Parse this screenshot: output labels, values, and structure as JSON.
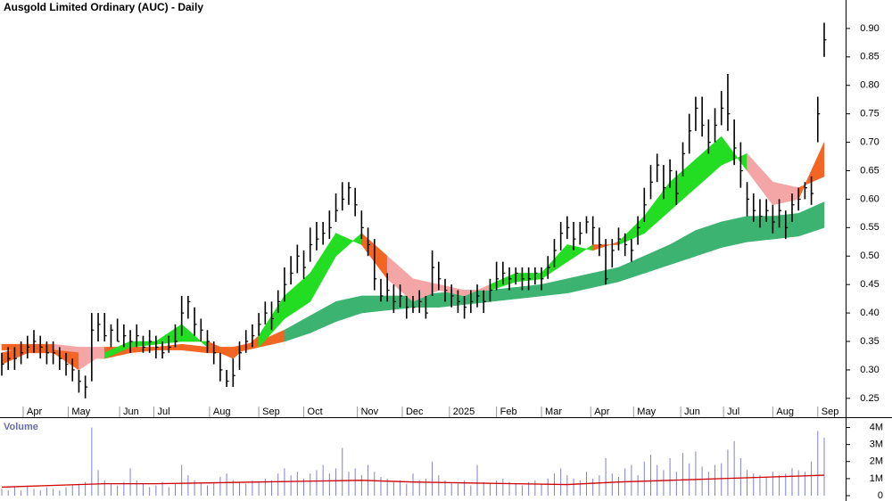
{
  "chart_data": [
    {
      "type": "ohlc",
      "title": "Ausgold Limited Ordinary (AUC) - Daily",
      "color": "#000000",
      "x": [
        0,
        3,
        6,
        9,
        12,
        15,
        18,
        21,
        24,
        27,
        30,
        33,
        36,
        39,
        42,
        45,
        48,
        51,
        54,
        57,
        60,
        63,
        66,
        69,
        72,
        75,
        78,
        81,
        84,
        87,
        90,
        93,
        96,
        99,
        102,
        105,
        108,
        111,
        114,
        117,
        120,
        123,
        126,
        129,
        132,
        135,
        138,
        141,
        144,
        147,
        150,
        153,
        156,
        159,
        162,
        165,
        168,
        171,
        174,
        177,
        180,
        183,
        186,
        189,
        192,
        195,
        198,
        201,
        204,
        207,
        210,
        213,
        216,
        219,
        222,
        225,
        228,
        231,
        234,
        237,
        240,
        243,
        246,
        249,
        252,
        255,
        258,
        261,
        264,
        267,
        270,
        273,
        276,
        279,
        282,
        285,
        288,
        291,
        294,
        297,
        300,
        303,
        306,
        309,
        312,
        315,
        318,
        321,
        324,
        327,
        330,
        333,
        336,
        339,
        342,
        345,
        348,
        351,
        354,
        357,
        360,
        363,
        366,
        369,
        372,
        375,
        378,
        381,
        384
      ],
      "high": [
        0.33,
        0.34,
        0.34,
        0.35,
        0.36,
        0.37,
        0.36,
        0.35,
        0.35,
        0.34,
        0.33,
        0.32,
        0.3,
        0.29,
        0.4,
        0.4,
        0.4,
        0.38,
        0.39,
        0.38,
        0.37,
        0.38,
        0.36,
        0.37,
        0.36,
        0.35,
        0.36,
        0.38,
        0.43,
        0.43,
        0.41,
        0.39,
        0.37,
        0.35,
        0.33,
        0.3,
        0.32,
        0.35,
        0.37,
        0.38,
        0.4,
        0.42,
        0.42,
        0.44,
        0.48,
        0.5,
        0.52,
        0.51,
        0.55,
        0.56,
        0.56,
        0.58,
        0.61,
        0.63,
        0.63,
        0.62,
        0.58,
        0.55,
        0.53,
        0.46,
        0.47,
        0.45,
        0.45,
        0.43,
        0.43,
        0.44,
        0.43,
        0.51,
        0.49,
        0.46,
        0.45,
        0.44,
        0.43,
        0.44,
        0.45,
        0.44,
        0.46,
        0.49,
        0.49,
        0.48,
        0.48,
        0.48,
        0.48,
        0.48,
        0.48,
        0.5,
        0.53,
        0.56,
        0.57,
        0.56,
        0.56,
        0.57,
        0.57,
        0.55,
        0.53,
        0.53,
        0.55,
        0.54,
        0.53,
        0.57,
        0.62,
        0.66,
        0.68,
        0.66,
        0.67,
        0.65,
        0.7,
        0.75,
        0.78,
        0.78,
        0.74,
        0.76,
        0.79,
        0.82,
        0.74,
        0.7,
        0.63,
        0.61,
        0.6,
        0.6,
        0.59,
        0.6,
        0.58,
        0.61,
        0.62,
        0.63,
        0.64,
        0.78,
        0.91
      ],
      "low": [
        0.29,
        0.3,
        0.3,
        0.31,
        0.32,
        0.33,
        0.32,
        0.31,
        0.31,
        0.3,
        0.29,
        0.28,
        0.26,
        0.25,
        0.28,
        0.35,
        0.35,
        0.34,
        0.35,
        0.34,
        0.33,
        0.34,
        0.33,
        0.33,
        0.32,
        0.32,
        0.33,
        0.34,
        0.36,
        0.39,
        0.36,
        0.35,
        0.33,
        0.31,
        0.28,
        0.27,
        0.27,
        0.3,
        0.33,
        0.34,
        0.36,
        0.38,
        0.37,
        0.4,
        0.42,
        0.45,
        0.47,
        0.46,
        0.49,
        0.51,
        0.52,
        0.53,
        0.56,
        0.58,
        0.59,
        0.57,
        0.53,
        0.5,
        0.44,
        0.42,
        0.42,
        0.4,
        0.41,
        0.39,
        0.4,
        0.4,
        0.39,
        0.43,
        0.44,
        0.42,
        0.41,
        0.4,
        0.39,
        0.4,
        0.41,
        0.4,
        0.42,
        0.44,
        0.45,
        0.44,
        0.45,
        0.44,
        0.44,
        0.45,
        0.44,
        0.46,
        0.48,
        0.51,
        0.53,
        0.51,
        0.52,
        0.54,
        0.52,
        0.5,
        0.45,
        0.48,
        0.51,
        0.5,
        0.49,
        0.52,
        0.56,
        0.6,
        0.63,
        0.6,
        0.62,
        0.59,
        0.64,
        0.68,
        0.72,
        0.71,
        0.68,
        0.7,
        0.73,
        0.72,
        0.66,
        0.62,
        0.57,
        0.56,
        0.55,
        0.56,
        0.54,
        0.55,
        0.53,
        0.56,
        0.58,
        0.6,
        0.59,
        0.7,
        0.85
      ],
      "close": [
        0.31,
        0.32,
        0.32,
        0.33,
        0.34,
        0.35,
        0.34,
        0.33,
        0.33,
        0.32,
        0.31,
        0.3,
        0.28,
        0.27,
        0.37,
        0.38,
        0.36,
        0.37,
        0.35,
        0.36,
        0.35,
        0.36,
        0.34,
        0.35,
        0.34,
        0.33,
        0.34,
        0.35,
        0.4,
        0.42,
        0.38,
        0.37,
        0.35,
        0.33,
        0.3,
        0.28,
        0.29,
        0.33,
        0.35,
        0.36,
        0.38,
        0.4,
        0.39,
        0.42,
        0.45,
        0.47,
        0.5,
        0.48,
        0.52,
        0.53,
        0.54,
        0.55,
        0.58,
        0.6,
        0.62,
        0.59,
        0.55,
        0.52,
        0.46,
        0.43,
        0.44,
        0.42,
        0.43,
        0.41,
        0.41,
        0.42,
        0.4,
        0.48,
        0.46,
        0.44,
        0.43,
        0.42,
        0.41,
        0.42,
        0.43,
        0.42,
        0.44,
        0.46,
        0.47,
        0.46,
        0.47,
        0.46,
        0.46,
        0.47,
        0.46,
        0.48,
        0.51,
        0.54,
        0.55,
        0.53,
        0.54,
        0.56,
        0.55,
        0.52,
        0.46,
        0.51,
        0.53,
        0.52,
        0.51,
        0.55,
        0.59,
        0.63,
        0.66,
        0.62,
        0.65,
        0.61,
        0.68,
        0.72,
        0.76,
        0.73,
        0.7,
        0.73,
        0.76,
        0.75,
        0.69,
        0.65,
        0.6,
        0.58,
        0.57,
        0.58,
        0.56,
        0.58,
        0.55,
        0.59,
        0.6,
        0.62,
        0.61,
        0.75,
        0.88
      ],
      "ribbons": [
        {
          "x": [
            0,
            12,
            24,
            36,
            48,
            60,
            72,
            84,
            96,
            108,
            120,
            132,
            144,
            156,
            168,
            180,
            192,
            204,
            216,
            228,
            240,
            252,
            264,
            276,
            288,
            300,
            312,
            324,
            336,
            348,
            360,
            372,
            384
          ],
          "fast": [
            0.345,
            0.345,
            0.345,
            0.34,
            0.34,
            0.34,
            0.34,
            0.345,
            0.34,
            0.34,
            0.35,
            0.37,
            0.395,
            0.42,
            0.43,
            0.43,
            0.43,
            0.435,
            0.44,
            0.44,
            0.445,
            0.45,
            0.46,
            0.47,
            0.48,
            0.5,
            0.52,
            0.545,
            0.56,
            0.57,
            0.57,
            0.575,
            0.595
          ],
          "slow": [
            0.335,
            0.335,
            0.33,
            0.32,
            0.32,
            0.33,
            0.335,
            0.335,
            0.33,
            0.33,
            0.34,
            0.35,
            0.365,
            0.385,
            0.4,
            0.405,
            0.41,
            0.41,
            0.415,
            0.42,
            0.425,
            0.43,
            0.435,
            0.445,
            0.455,
            0.47,
            0.485,
            0.5,
            0.515,
            0.525,
            0.53,
            0.535,
            0.55
          ],
          "colors": [
            "#f26522",
            "#f26522",
            "#f4a6a6",
            "#f4a6a6",
            "#f26522",
            "#f26522",
            "#f26522",
            "#f26522",
            "#f26522",
            "#f26522",
            "#f26522",
            "#3cb371",
            "#3cb371",
            "#3cb371",
            "#3cb371",
            "#3cb371",
            "#3cb371",
            "#3cb371",
            "#3cb371",
            "#3cb371",
            "#3cb371",
            "#3cb371",
            "#3cb371",
            "#3cb371",
            "#3cb371",
            "#3cb371",
            "#3cb371",
            "#3cb371",
            "#3cb371",
            "#3cb371",
            "#3cb371",
            "#3cb371",
            "#3cb371"
          ]
        },
        {
          "x": [
            0,
            12,
            24,
            36,
            48,
            60,
            72,
            84,
            96,
            108,
            120,
            132,
            144,
            156,
            168,
            180,
            192,
            204,
            216,
            228,
            240,
            252,
            264,
            276,
            288,
            300,
            312,
            324,
            336,
            348,
            360,
            372,
            384
          ],
          "fast": [
            0.31,
            0.33,
            0.33,
            0.3,
            0.33,
            0.35,
            0.35,
            0.38,
            0.34,
            0.32,
            0.36,
            0.43,
            0.47,
            0.54,
            0.52,
            0.46,
            0.42,
            0.44,
            0.43,
            0.45,
            0.47,
            0.47,
            0.52,
            0.51,
            0.525,
            0.57,
            0.63,
            0.67,
            0.71,
            0.65,
            0.59,
            0.6,
            0.7
          ],
          "slow": [
            0.33,
            0.34,
            0.335,
            0.33,
            0.32,
            0.34,
            0.345,
            0.35,
            0.35,
            0.33,
            0.34,
            0.39,
            0.42,
            0.5,
            0.54,
            0.5,
            0.46,
            0.45,
            0.44,
            0.44,
            0.455,
            0.46,
            0.49,
            0.52,
            0.52,
            0.54,
            0.58,
            0.62,
            0.66,
            0.68,
            0.63,
            0.62,
            0.64
          ],
          "colors": [
            "#f26522",
            "#f26522",
            "#f26522",
            "#f4a6a6",
            "#22dd22",
            "#22dd22",
            "#22dd22",
            "#22dd22",
            "#f26522",
            "#f26522",
            "#22dd22",
            "#22dd22",
            "#22dd22",
            "#22dd22",
            "#f26522",
            "#f4a6a6",
            "#f4a6a6",
            "#f4a6a6",
            "#f4a6a6",
            "#22dd22",
            "#22dd22",
            "#22dd22",
            "#22dd22",
            "#f26522",
            "#22dd22",
            "#22dd22",
            "#22dd22",
            "#22dd22",
            "#22dd22",
            "#f4a6a6",
            "#f4a6a6",
            "#f26522",
            "#22dd22"
          ]
        }
      ],
      "xlim": [
        0,
        394
      ],
      "ylim": [
        0.22,
        0.95
      ],
      "yticks": [
        0.25,
        {
          "value": 0.3,
          "label": "0.30"
        },
        0.35,
        {
          "value": 0.4,
          "label": "0.40"
        },
        0.45,
        {
          "value": 0.5,
          "label": "0.50"
        },
        0.55,
        {
          "value": 0.6,
          "label": "0.60"
        },
        0.65,
        {
          "value": 0.7,
          "label": "0.70"
        },
        0.75,
        {
          "value": 0.8,
          "label": "0.80"
        },
        0.85,
        {
          "value": 0.9,
          "label": "0.90"
        }
      ],
      "xticks": [
        {
          "value": 10,
          "label": "Apr"
        },
        {
          "value": 31,
          "label": "May"
        },
        {
          "value": 55,
          "label": "Jun"
        },
        {
          "value": 71,
          "label": "Jul"
        },
        {
          "value": 97,
          "label": "Aug"
        },
        {
          "value": 120,
          "label": "Sep"
        },
        {
          "value": 141,
          "label": "Oct"
        },
        {
          "value": 166,
          "label": "Nov"
        },
        {
          "value": 187,
          "label": "Dec"
        },
        {
          "value": 209,
          "label": "2025"
        },
        {
          "value": 231,
          "label": "Feb"
        },
        {
          "value": 252,
          "label": "Mar"
        },
        {
          "value": 275,
          "label": "Apr"
        },
        {
          "value": 295,
          "label": "May"
        },
        {
          "value": 317,
          "label": "Jun"
        },
        {
          "value": 337,
          "label": "Jul"
        },
        {
          "value": 360,
          "label": "Aug"
        },
        {
          "value": 381,
          "label": "Sep"
        }
      ]
    },
    {
      "type": "bar",
      "title": "Volume",
      "color": "#7f7fd0",
      "x": [
        0,
        3,
        6,
        9,
        12,
        15,
        18,
        21,
        24,
        27,
        30,
        33,
        36,
        39,
        42,
        45,
        48,
        51,
        54,
        57,
        60,
        63,
        66,
        69,
        72,
        75,
        78,
        81,
        84,
        87,
        90,
        93,
        96,
        99,
        102,
        105,
        108,
        111,
        114,
        117,
        120,
        123,
        126,
        129,
        132,
        135,
        138,
        141,
        144,
        147,
        150,
        153,
        156,
        159,
        162,
        165,
        168,
        171,
        174,
        177,
        180,
        183,
        186,
        189,
        192,
        195,
        198,
        201,
        204,
        207,
        210,
        213,
        216,
        219,
        222,
        225,
        228,
        231,
        234,
        237,
        240,
        243,
        246,
        249,
        252,
        255,
        258,
        261,
        264,
        267,
        270,
        273,
        276,
        279,
        282,
        285,
        288,
        291,
        294,
        297,
        300,
        303,
        306,
        309,
        312,
        315,
        318,
        321,
        324,
        327,
        330,
        333,
        336,
        339,
        342,
        345,
        348,
        351,
        354,
        357,
        360,
        363,
        366,
        369,
        372,
        375,
        378,
        381,
        384
      ],
      "values": [
        400000,
        300000,
        500000,
        300000,
        600000,
        400000,
        300000,
        500000,
        400000,
        300000,
        500000,
        600000,
        700000,
        800000,
        4000000,
        1500000,
        900000,
        700000,
        600000,
        800000,
        1600000,
        900000,
        700000,
        500000,
        600000,
        800000,
        500000,
        700000,
        1800000,
        1200000,
        900000,
        700000,
        600000,
        800000,
        1100000,
        1300000,
        900000,
        800000,
        700000,
        900000,
        800000,
        1000000,
        900000,
        1300000,
        1600000,
        1200000,
        1400000,
        1000000,
        1300000,
        1500000,
        1800000,
        1300000,
        1600000,
        2800000,
        1400000,
        1600000,
        1200000,
        1800000,
        1400000,
        1100000,
        1000000,
        800000,
        900000,
        700000,
        1300000,
        900000,
        1000000,
        2000000,
        1200000,
        900000,
        800000,
        700000,
        900000,
        600000,
        1800000,
        800000,
        700000,
        900000,
        1000000,
        800000,
        700000,
        600000,
        800000,
        900000,
        700000,
        1000000,
        1300000,
        1600000,
        1200000,
        1000000,
        900000,
        1400000,
        1000000,
        1200000,
        2200000,
        1300000,
        1100000,
        1600000,
        1800000,
        1200000,
        2000000,
        2400000,
        1800000,
        1500000,
        2200000,
        1400000,
        2500000,
        1900000,
        2600000,
        1700000,
        1400000,
        1800000,
        1900000,
        2700000,
        3200000,
        2200000,
        1500000,
        1300000,
        1200000,
        1100000,
        1400000,
        1200000,
        1300000,
        1600000,
        1500000,
        1400000,
        2000000,
        3800000,
        3400000
      ],
      "lines": [
        {
          "color": "#d00000",
          "x": [
            0,
            24,
            48,
            72,
            96,
            120,
            144,
            168,
            192,
            216,
            240,
            264,
            288,
            312,
            336,
            360,
            384
          ],
          "values": [
            500000,
            600000,
            700000,
            700000,
            750000,
            800000,
            850000,
            900000,
            800000,
            750000,
            700000,
            650000,
            800000,
            900000,
            1000000,
            1100000,
            1200000
          ]
        }
      ],
      "xlim": [
        0,
        394
      ],
      "ylim": [
        0,
        4500000
      ],
      "yticks": [
        0,
        {
          "value": 1000000,
          "label": "1M"
        },
        {
          "value": 2000000,
          "label": "2M"
        },
        {
          "value": 3000000,
          "label": "3M"
        },
        {
          "value": 4000000,
          "label": "4M"
        }
      ]
    }
  ]
}
